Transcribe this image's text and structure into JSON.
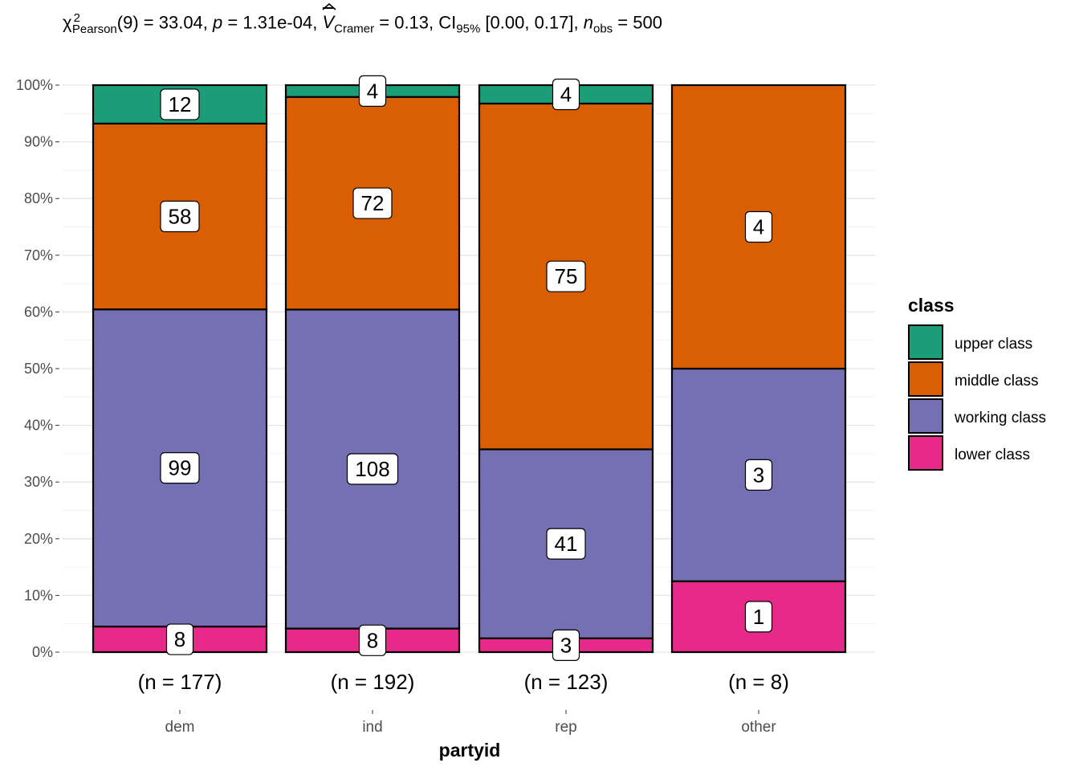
{
  "subtitle": {
    "chi": "χ",
    "chi_sup": "2",
    "chi_sub": "Pearson",
    "df_part": "(9) = 33.04, ",
    "p_sym": "p",
    "p_part": " = 1.31e-04, ",
    "v_sym": "V",
    "v_sub": "Cramer",
    "v_part": " = 0.13, CI",
    "ci_sub": "95%",
    "ci_part": " [0.00, 0.17], ",
    "n_sym": "n",
    "n_sub": "obs",
    "n_part": " = 500"
  },
  "chart_data": {
    "type": "bar",
    "stacked": "percent",
    "xlabel": "partyid",
    "ylabel": "",
    "ylim": [
      0,
      100
    ],
    "y_ticks": [
      "0%",
      "10%",
      "20%",
      "30%",
      "40%",
      "50%",
      "60%",
      "70%",
      "80%",
      "90%",
      "100%"
    ],
    "categories": [
      "dem",
      "ind",
      "rep",
      "other"
    ],
    "category_counts": [
      "(n = 177)",
      "(n = 192)",
      "(n = 123)",
      "(n = 8)"
    ],
    "legend_title": "class",
    "legend_position": "right",
    "grid": true,
    "series": [
      {
        "name": "upper class",
        "color": "#1B9E77",
        "values": [
          12,
          4,
          4,
          0
        ]
      },
      {
        "name": "middle class",
        "color": "#D95F02",
        "values": [
          58,
          72,
          75,
          4
        ]
      },
      {
        "name": "working class",
        "color": "#7570B3",
        "values": [
          99,
          108,
          41,
          3
        ]
      },
      {
        "name": "lower class",
        "color": "#E7298A",
        "values": [
          8,
          8,
          3,
          1
        ]
      }
    ]
  }
}
